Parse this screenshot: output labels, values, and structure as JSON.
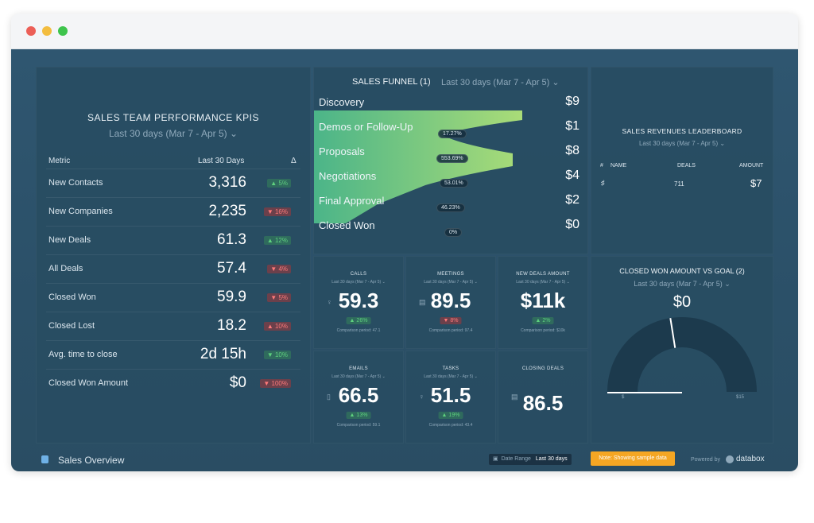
{
  "kpi": {
    "title": "SALES TEAM PERFORMANCE KPIS",
    "range": "Last 30 days (Mar 7 - Apr 5) ⌄",
    "col_metric": "Metric",
    "col_period": "Last 30 Days",
    "col_delta": "Δ",
    "rows": [
      {
        "name": "New Contacts",
        "value": "3,316",
        "change": "▲ 5%",
        "dir": "up"
      },
      {
        "name": "New Companies",
        "value": "2,235",
        "change": "▼ 16%",
        "dir": "down"
      },
      {
        "name": "New Deals",
        "value": "61.3",
        "change": "▲ 12%",
        "dir": "up"
      },
      {
        "name": "All Deals",
        "value": "57.4",
        "change": "▼ 4%",
        "dir": "down"
      },
      {
        "name": "Closed Won",
        "value": "59.9",
        "change": "▼ 5%",
        "dir": "down"
      },
      {
        "name": "Closed Lost",
        "value": "18.2",
        "change": "▲ 10%",
        "dir": "down"
      },
      {
        "name": "Avg. time to close",
        "value": "2d 15h",
        "change": "▼ 10%",
        "dir": "up"
      },
      {
        "name": "Closed Won Amount",
        "value": "$0",
        "change": "▼ 100%",
        "dir": "down"
      }
    ]
  },
  "funnel": {
    "title": "SALES FUNNEL (1)",
    "range": "Last 30 days (Mar 7 - Apr 5) ⌄",
    "stages": [
      {
        "label": "Discovery",
        "value": "$9"
      },
      {
        "label": "Demos or Follow-Up",
        "value": "$1"
      },
      {
        "label": "Proposals",
        "value": "$8"
      },
      {
        "label": "Negotiations",
        "value": "$4"
      },
      {
        "label": "Final Approval",
        "value": "$2"
      },
      {
        "label": "Closed Won",
        "value": "$0"
      }
    ],
    "conversions": [
      "17.27%",
      "553.69%",
      "53.01%",
      "46.23%",
      "0%"
    ]
  },
  "leaderboard": {
    "title": "SALES REVENUES LEADERBOARD",
    "range": "Last 30 days (Mar 7 - Apr 5) ⌄",
    "cols": [
      "#",
      "NAME",
      "DEALS",
      "AMOUNT"
    ],
    "row": {
      "deals": "711",
      "amount": "$7"
    }
  },
  "metrics": [
    {
      "title": "CALLS",
      "sub": "Last 30 days (Mar 7 - Apr 5) ⌄",
      "icon": "user-icon",
      "glyph": "♀",
      "value": "59.3",
      "change": "▲ 26%",
      "dir": "up",
      "cmp": "Comparison period: 47.1"
    },
    {
      "title": "MEETINGS",
      "sub": "Last 30 days (Mar 7 - Apr 5) ⌄",
      "icon": "briefcase-icon",
      "glyph": "▤",
      "value": "89.5",
      "change": "▼ 8%",
      "dir": "down",
      "cmp": "Comparison period: 97.4"
    },
    {
      "title": "NEW DEALS AMOUNT",
      "sub": "Last 30 days (Mar 7 - Apr 5) ⌄",
      "icon": "",
      "glyph": "",
      "value": "$11k",
      "change": "▲ 2%",
      "dir": "up",
      "cmp": "Comparison period: $10k"
    },
    {
      "title": "EMAILS",
      "sub": "Last 30 days (Mar 7 - Apr 5) ⌄",
      "icon": "document-icon",
      "glyph": "▯",
      "value": "66.5",
      "change": "▲ 13%",
      "dir": "up",
      "cmp": "Comparison period: 59.1"
    },
    {
      "title": "TASKS",
      "sub": "Last 30 days (Mar 7 - Apr 5) ⌄",
      "icon": "user-icon",
      "glyph": "♀",
      "value": "51.5",
      "change": "▲ 19%",
      "dir": "up",
      "cmp": "Comparison period: 43.4"
    },
    {
      "title": "CLOSING DEALS",
      "sub": "",
      "icon": "briefcase-icon",
      "glyph": "▤",
      "value": "86.5",
      "change": "",
      "dir": "",
      "cmp": ""
    }
  ],
  "gauge": {
    "title": "CLOSED WON AMOUNT VS GOAL (2)",
    "range": "Last 30 days (Mar 7 - Apr 5) ⌄",
    "value": "$0",
    "min": "$",
    "max": "$15",
    "actual_fraction": 0,
    "goal_fraction": 0.45
  },
  "footer": {
    "title": "Sales Overview",
    "date_range_label": "Date Range",
    "date_range_value": "Last 30 days",
    "notice": "Note: Showing sample data",
    "powered": "Powered by",
    "brand": "databox"
  },
  "colors": {
    "up": "#5fd17f",
    "down": "#ff7a7a",
    "funnel_green": "#8ee07a",
    "notice": "#f5a623"
  }
}
